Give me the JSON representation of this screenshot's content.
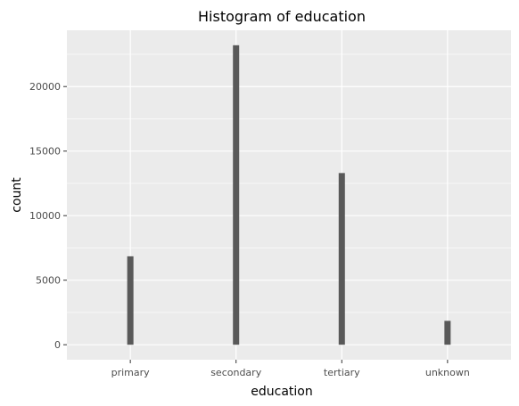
{
  "chart_data": {
    "type": "bar",
    "title": "Histogram of education",
    "xlabel": "education",
    "ylabel": "count",
    "categories": [
      "primary",
      "secondary",
      "tertiary",
      "unknown"
    ],
    "values": [
      6850,
      23200,
      13300,
      1850
    ],
    "ylim": [
      -1160,
      24360
    ],
    "yticks": [
      0,
      5000,
      10000,
      15000,
      20000
    ],
    "ytick_labels": [
      "0",
      "5000",
      "10000",
      "15000",
      "20000"
    ],
    "grid": true,
    "legend": "none",
    "colors": {
      "panel": "#ebebeb",
      "grid": "#ffffff",
      "bar": "#595959"
    }
  }
}
